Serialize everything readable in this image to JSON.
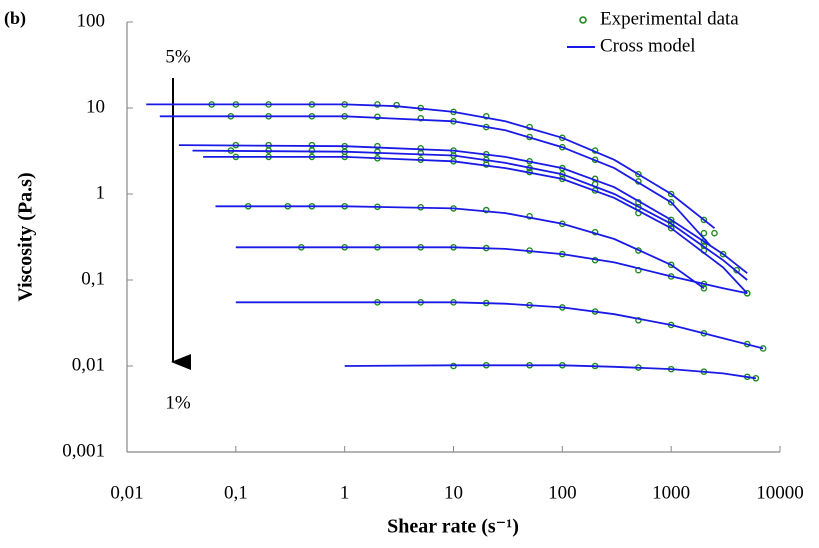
{
  "chart_data": {
    "type": "scatter",
    "panel_label": "(b)",
    "xlabel": "Shear rate (s⁻¹)",
    "ylabel": "Viscosity (Pa.s)",
    "annotations": [
      "5%",
      "1%"
    ],
    "xscale": "log",
    "yscale": "log",
    "xlim": [
      0.01,
      10000
    ],
    "ylim": [
      0.001,
      100
    ],
    "xticks": [
      {
        "value": 0.01,
        "label": "0,01"
      },
      {
        "value": 0.1,
        "label": "0,1"
      },
      1,
      10,
      100,
      1000,
      10000
    ],
    "yticks": [
      {
        "value": 0.001,
        "label": "0,001"
      },
      {
        "value": 0.01,
        "label": "0,01"
      },
      {
        "value": 0.1,
        "label": "0,1"
      },
      1,
      10,
      100
    ],
    "legend": "upper right",
    "series": [
      {
        "name": "Experimental data",
        "color": "#1f8a1f",
        "marker": "circle",
        "curves": [
          {
            "x": [
              0.06,
              0.1,
              0.2,
              0.5,
              1,
              2,
              3,
              5,
              10,
              20,
              50,
              100,
              200,
              500,
              1000,
              2000,
              2500
            ],
            "values": [
              11,
              11,
              11,
              11,
              11,
              11,
              10.8,
              10,
              9,
              8,
              6,
              4.5,
              3.2,
              1.7,
              1,
              0.5,
              0.35
            ]
          },
          {
            "x": [
              0.09,
              0.2,
              0.5,
              1,
              2,
              5,
              10,
              20,
              50,
              100,
              200,
              500,
              1000,
              2000
            ],
            "values": [
              8,
              8,
              8,
              8,
              7.9,
              7.6,
              7,
              6,
              4.6,
              3.5,
              2.5,
              1.4,
              0.8,
              0.35
            ]
          },
          {
            "x": [
              0.1,
              0.2,
              0.5,
              1,
              2,
              5,
              10,
              20,
              50,
              100,
              200,
              500,
              1000,
              2000,
              3000
            ],
            "values": [
              3.7,
              3.7,
              3.7,
              3.6,
              3.6,
              3.4,
              3.2,
              2.9,
              2.4,
              2,
              1.5,
              0.8,
              0.5,
              0.28,
              0.2
            ]
          },
          {
            "x": [
              0.09,
              0.2,
              0.5,
              1,
              2,
              5,
              10,
              20,
              50,
              100,
              200,
              500,
              1000,
              2000,
              4000
            ],
            "values": [
              3.2,
              3.2,
              3.2,
              3.1,
              3.1,
              3,
              2.8,
              2.5,
              2,
              1.7,
              1.3,
              0.7,
              0.45,
              0.25,
              0.13
            ]
          },
          {
            "x": [
              0.1,
              0.2,
              0.5,
              1,
              2,
              5,
              10,
              20,
              50,
              100,
              200,
              500,
              1000,
              2000,
              5000
            ],
            "values": [
              2.7,
              2.7,
              2.7,
              2.7,
              2.6,
              2.5,
              2.4,
              2.2,
              1.8,
              1.5,
              1.1,
              0.6,
              0.4,
              0.22,
              0.07
            ]
          },
          {
            "x": [
              0.13,
              0.3,
              0.5,
              1,
              2,
              5,
              10,
              20,
              50,
              100,
              200,
              500,
              1000,
              2000
            ],
            "values": [
              0.72,
              0.72,
              0.72,
              0.72,
              0.71,
              0.7,
              0.68,
              0.65,
              0.55,
              0.45,
              0.36,
              0.22,
              0.15,
              0.08
            ]
          },
          {
            "x": [
              0.4,
              1,
              2,
              5,
              10,
              20,
              50,
              100,
              200,
              500,
              1000,
              2000,
              5000
            ],
            "values": [
              0.24,
              0.24,
              0.24,
              0.24,
              0.24,
              0.235,
              0.22,
              0.2,
              0.17,
              0.13,
              0.11,
              0.09,
              0.07
            ]
          },
          {
            "x": [
              2,
              5,
              10,
              20,
              50,
              100,
              200,
              500,
              1000,
              2000,
              5000,
              7000
            ],
            "values": [
              0.055,
              0.055,
              0.055,
              0.054,
              0.051,
              0.048,
              0.043,
              0.034,
              0.03,
              0.024,
              0.018,
              0.016
            ]
          },
          {
            "x": [
              10,
              20,
              50,
              100,
              200,
              500,
              1000,
              2000,
              5000,
              6000
            ],
            "values": [
              0.01,
              0.0102,
              0.0102,
              0.0102,
              0.01,
              0.0096,
              0.0092,
              0.0086,
              0.0075,
              0.0072
            ]
          }
        ]
      },
      {
        "name": "Cross model",
        "color": "#1a1ae6",
        "marker": "line",
        "curves": [
          {
            "x": [
              0.015,
              1,
              3,
              10,
              30,
              100,
              300,
              1000,
              2500
            ],
            "values": [
              11,
              11,
              10.5,
              9,
              7,
              4.5,
              2.5,
              1,
              0.4
            ]
          },
          {
            "x": [
              0.02,
              1,
              10,
              30,
              100,
              300,
              1000,
              2300
            ],
            "values": [
              8,
              8,
              7,
              5.5,
              3.5,
              2,
              0.8,
              0.25
            ]
          },
          {
            "x": [
              0.03,
              1,
              10,
              30,
              100,
              300,
              1000,
              3000,
              5000
            ],
            "values": [
              3.7,
              3.6,
              3.2,
              2.7,
              2,
              1.2,
              0.5,
              0.2,
              0.12
            ]
          },
          {
            "x": [
              0.04,
              1,
              10,
              30,
              100,
              300,
              1000,
              3000,
              5000
            ],
            "values": [
              3.2,
              3.1,
              2.8,
              2.3,
              1.7,
              1,
              0.45,
              0.17,
              0.1
            ]
          },
          {
            "x": [
              0.05,
              1,
              10,
              30,
              100,
              300,
              1000,
              3000,
              5000
            ],
            "values": [
              2.7,
              2.7,
              2.4,
              2,
              1.5,
              0.9,
              0.4,
              0.14,
              0.07
            ]
          },
          {
            "x": [
              0.065,
              1,
              10,
              30,
              100,
              300,
              1000,
              2000
            ],
            "values": [
              0.72,
              0.72,
              0.68,
              0.6,
              0.45,
              0.3,
              0.15,
              0.08
            ]
          },
          {
            "x": [
              0.1,
              1,
              10,
              30,
              100,
              300,
              1000,
              3000,
              5000
            ],
            "values": [
              0.24,
              0.24,
              0.24,
              0.23,
              0.2,
              0.16,
              0.11,
              0.08,
              0.07
            ]
          },
          {
            "x": [
              0.1,
              2,
              10,
              30,
              100,
              300,
              1000,
              3000,
              7000
            ],
            "values": [
              0.055,
              0.055,
              0.055,
              0.053,
              0.048,
              0.04,
              0.03,
              0.021,
              0.016
            ]
          },
          {
            "x": [
              1,
              10,
              30,
              100,
              300,
              1000,
              3000,
              6000
            ],
            "values": [
              0.01,
              0.0102,
              0.0102,
              0.0102,
              0.0098,
              0.0092,
              0.0082,
              0.0072
            ]
          }
        ]
      }
    ]
  }
}
